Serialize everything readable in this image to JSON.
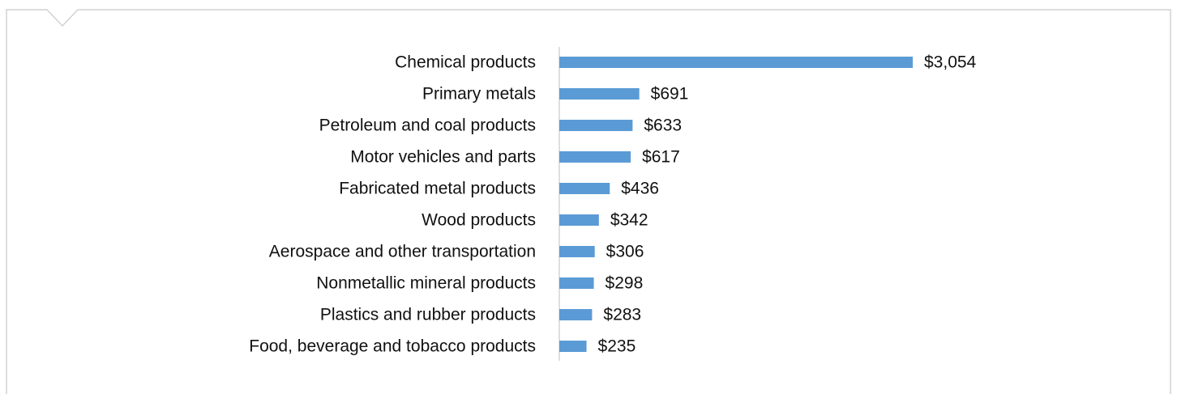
{
  "chart_data": {
    "type": "bar",
    "orientation": "horizontal",
    "title": "",
    "xlabel": "",
    "ylabel": "",
    "categories": [
      "Chemical products",
      "Primary metals",
      "Petroleum and coal products",
      "Motor vehicles and parts",
      "Fabricated metal products",
      "Wood products",
      "Aerospace and other transportation",
      "Nonmetallic mineral products",
      "Plastics and rubber products",
      "Food, beverage and tobacco products"
    ],
    "values": [
      3054,
      691,
      633,
      617,
      436,
      342,
      306,
      298,
      283,
      235
    ],
    "value_labels": [
      "$3,054",
      "$691",
      "$633",
      "$617",
      "$436",
      "$342",
      "$306",
      "$298",
      "$283",
      "$235"
    ],
    "xlim": [
      0,
      3054
    ],
    "grid": false,
    "legend": "none",
    "colors": {
      "bar": "#5b9bd5",
      "axis": "#bfbfbf",
      "frame": "#c8c8c8"
    }
  }
}
